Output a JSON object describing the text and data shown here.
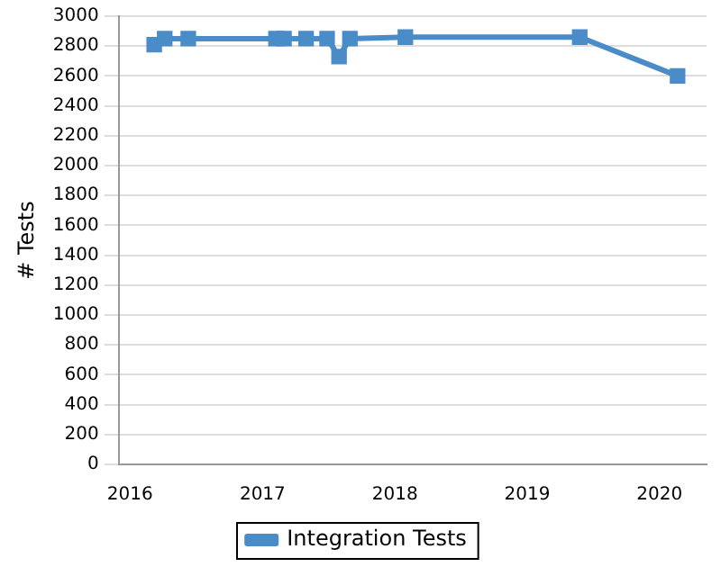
{
  "chart_data": {
    "type": "line",
    "ylabel": "# Tests",
    "x": [
      "2016-03-08",
      "2016-04-06",
      "2016-06-10",
      "2017-02-07",
      "2017-03-01",
      "2017-05-01",
      "2017-06-28",
      "2017-07-31",
      "2017-08-30",
      "2018-01-30",
      "2019-05-26",
      "2020-02-20"
    ],
    "series": [
      {
        "name": "Integration Tests",
        "color": "#4a8cc8",
        "values": [
          2810,
          2850,
          2850,
          2850,
          2850,
          2850,
          2850,
          2730,
          2850,
          2860,
          2860,
          2600
        ]
      }
    ],
    "xlim": [
      "2015-12-01",
      "2020-05-10"
    ],
    "xticks": [
      "2016",
      "2017",
      "2018",
      "2019",
      "2020"
    ],
    "ylim": [
      0,
      3000
    ],
    "yticks": [
      0,
      200,
      400,
      600,
      800,
      1000,
      1200,
      1400,
      1600,
      1800,
      2000,
      2200,
      2400,
      2600,
      2800,
      3000
    ],
    "grid": "y",
    "legend": "bottom",
    "marker": "square",
    "line_style": "solid"
  }
}
